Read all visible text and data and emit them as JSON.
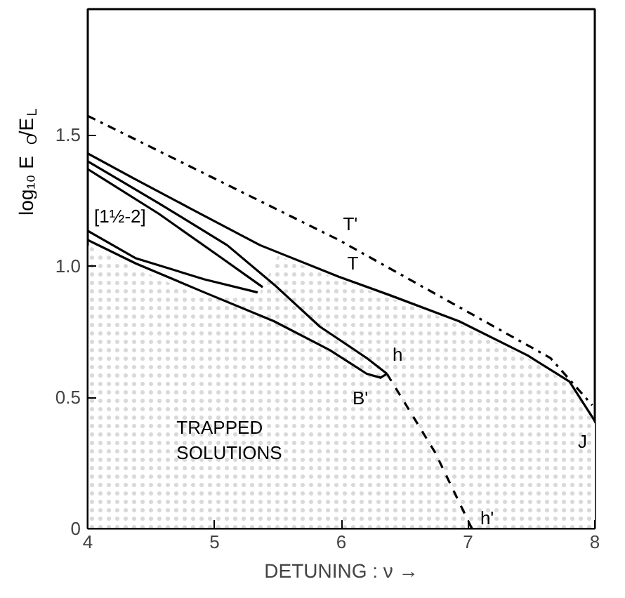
{
  "chart_data": {
    "type": "line",
    "xlabel": "DETUNING : ν →",
    "ylabel": "log₁₀ E$_{O}$/E$_{L}$",
    "xlim": [
      4,
      8
    ],
    "ylim": [
      0,
      1.98
    ],
    "xticks": [
      4,
      5,
      6,
      7,
      8
    ],
    "yticks": [
      0,
      0.5,
      {
        "value": 1.0,
        "label": "1.0"
      },
      1.5
    ],
    "grid": false,
    "series": [
      {
        "type": "area",
        "color": "#d9d9d9",
        "x": [
          4,
          4.38,
          4.92,
          5.34,
          5.5,
          5.98,
          6.38,
          6.93,
          7.47,
          7.8,
          8
        ],
        "values": [
          1.08,
          0.99,
          0.88,
          0.88,
          1.04,
          0.95,
          0.88,
          0.78,
          0.65,
          0.55,
          0.4
        ]
      },
      {
        "color": "#000000",
        "line_style": "dashdot",
        "x": [
          4,
          5.98,
          7.65,
          7.98
        ],
        "values": [
          1.573,
          1.1,
          0.65,
          0.47
        ]
      },
      {
        "color": "#000000",
        "line_style": "solid",
        "x": [
          4,
          4.38,
          4.81,
          5.36,
          5.98,
          6.38,
          6.93,
          7.47,
          7.8,
          8
        ],
        "values": [
          1.43,
          1.33,
          1.22,
          1.08,
          0.96,
          0.89,
          0.79,
          0.66,
          0.56,
          0.41
        ]
      },
      {
        "color": "#000000",
        "line_style": "solid",
        "x": [
          4,
          4.56,
          5.1,
          5.47,
          5.83,
          6.2,
          6.36
        ],
        "values": [
          1.4,
          1.24,
          1.08,
          0.93,
          0.77,
          0.65,
          0.59
        ]
      },
      {
        "color": "#000000",
        "line_style": "solid",
        "x": [
          4,
          4.38,
          4.92,
          5.47,
          5.91,
          6.2,
          6.31,
          6.36
        ],
        "values": [
          1.1,
          1.01,
          0.9,
          0.79,
          0.68,
          0.59,
          0.575,
          0.59
        ]
      },
      {
        "color": "#000000",
        "line_style": "solid",
        "x": [
          4,
          4.56,
          5.03,
          5.38
        ],
        "values": [
          1.37,
          1.2,
          1.04,
          0.92
        ]
      },
      {
        "color": "#000000",
        "line_style": "solid",
        "x": [
          4,
          4.38,
          4.92,
          5.34
        ],
        "values": [
          1.135,
          1.03,
          0.95,
          0.9
        ]
      },
      {
        "color": "#000000",
        "line_style": "dashed",
        "x": [
          6.36,
          6.74,
          7.03
        ],
        "values": [
          0.59,
          0.29,
          0
        ]
      }
    ],
    "annotations": [
      {
        "text": "T'",
        "x": 5.98,
        "y": 1.1
      },
      {
        "text": "T",
        "x": 5.98,
        "y": 0.96
      },
      {
        "text": "h",
        "x": 6.36,
        "y": 0.59
      },
      {
        "text": "B'",
        "x": 6.31,
        "y": 0.575
      },
      {
        "text": "h'",
        "x": 7.03,
        "y": 0
      },
      {
        "text": "J",
        "x": 8,
        "y": 0.41
      },
      "[1½-2]",
      "TRAPPED\nSOLUTIONS"
    ]
  }
}
